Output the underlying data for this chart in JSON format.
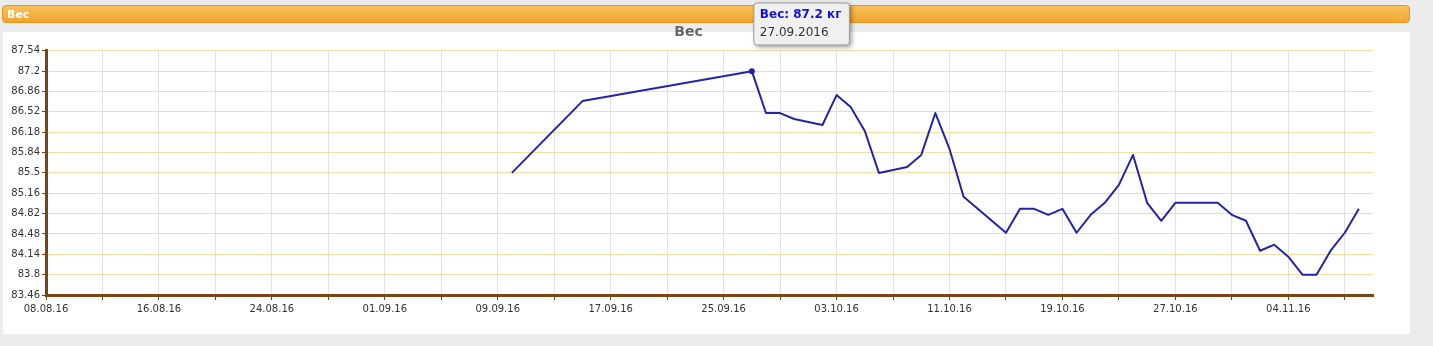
{
  "chart_data": {
    "type": "line",
    "title": "Вес",
    "annotations": [
      "Вес",
      {
        "text": "Вес: 87.2 кг\n27.09.2016",
        "x": "2016-09-27",
        "y": 87.2
      }
    ],
    "x": [
      "2016-09-10",
      "2016-09-15",
      "2016-09-27",
      "2016-09-28",
      "2016-09-29",
      "2016-09-30",
      "2016-10-02",
      "2016-10-03",
      "2016-10-04",
      "2016-10-05",
      "2016-10-06",
      "2016-10-08",
      "2016-10-09",
      "2016-10-10",
      "2016-10-11",
      "2016-10-12",
      "2016-10-15",
      "2016-10-16",
      "2016-10-17",
      "2016-10-18",
      "2016-10-19",
      "2016-10-20",
      "2016-10-21",
      "2016-10-22",
      "2016-10-23",
      "2016-10-24",
      "2016-10-25",
      "2016-10-26",
      "2016-10-27",
      "2016-10-28",
      "2016-10-29",
      "2016-10-30",
      "2016-10-31",
      "2016-11-01",
      "2016-11-02",
      "2016-11-03",
      "2016-11-04",
      "2016-11-05",
      "2016-11-06",
      "2016-11-07",
      "2016-11-08",
      "2016-11-09"
    ],
    "series": [
      {
        "color": "#2424a8",
        "values": [
          85.5,
          86.7,
          87.2,
          86.5,
          86.5,
          86.4,
          86.3,
          86.8,
          86.6,
          86.2,
          85.5,
          85.6,
          85.8,
          86.5,
          85.9,
          85.1,
          84.5,
          84.9,
          84.9,
          84.8,
          84.9,
          84.5,
          84.8,
          85.0,
          85.3,
          85.8,
          85.0,
          84.7,
          85.0,
          85.0,
          85.0,
          85.0,
          84.8,
          84.7,
          84.2,
          84.3,
          84.1,
          83.8,
          83.8,
          84.2,
          84.5,
          84.9
        ]
      }
    ],
    "xlim": [
      "2016-08-08",
      "2016-11-10"
    ],
    "xticks": [
      {
        "value": "2016-08-08",
        "label": "08.08.16"
      },
      {
        "value": "2016-08-12",
        "label": null
      },
      {
        "value": "2016-08-16",
        "label": "16.08.16"
      },
      {
        "value": "2016-08-20",
        "label": null
      },
      {
        "value": "2016-08-24",
        "label": "24.08.16"
      },
      {
        "value": "2016-08-28",
        "label": null
      },
      {
        "value": "2016-09-01",
        "label": "01.09.16"
      },
      {
        "value": "2016-09-05",
        "label": null
      },
      {
        "value": "2016-09-09",
        "label": "09.09.16"
      },
      {
        "value": "2016-09-13",
        "label": null
      },
      {
        "value": "2016-09-17",
        "label": "17.09.16"
      },
      {
        "value": "2016-09-21",
        "label": null
      },
      {
        "value": "2016-09-25",
        "label": "25.09.16"
      },
      {
        "value": "2016-09-29",
        "label": null
      },
      {
        "value": "2016-10-03",
        "label": "03.10.16"
      },
      {
        "value": "2016-10-07",
        "label": null
      },
      {
        "value": "2016-10-11",
        "label": "11.10.16"
      },
      {
        "value": "2016-10-15",
        "label": null
      },
      {
        "value": "2016-10-19",
        "label": "19.10.16"
      },
      {
        "value": "2016-10-23",
        "label": null
      },
      {
        "value": "2016-10-27",
        "label": "27.10.16"
      },
      {
        "value": "2016-10-31",
        "label": null
      },
      {
        "value": "2016-11-04",
        "label": "04.11.16"
      },
      {
        "value": "2016-11-08",
        "label": null
      }
    ],
    "ylim": [
      83.46,
      87.54
    ],
    "yticks": [
      83.46,
      83.8,
      84.14,
      84.48,
      84.82,
      85.16,
      85.5,
      85.84,
      86.18,
      86.52,
      86.86,
      87.2,
      87.54
    ],
    "grid": true,
    "legend": false,
    "marker": "none",
    "line_style": "solid"
  }
}
